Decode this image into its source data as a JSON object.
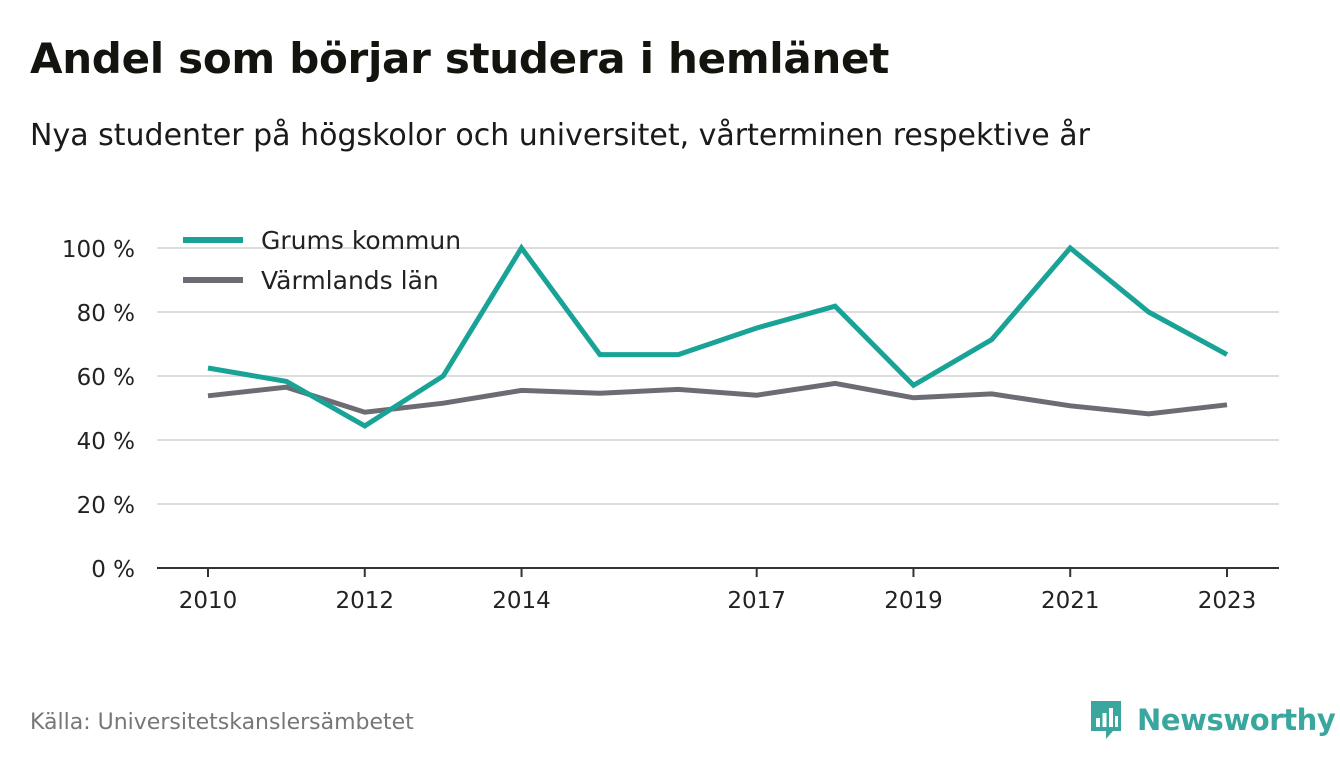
{
  "title": "Andel som börjar studera i hemlänet",
  "subtitle": "Nya studenter på högskolor och universitet, vårterminen respektive år",
  "source": "Källa: Universitetskanslersämbetet",
  "brand": "Newsworthy",
  "colors": {
    "grums": "#19a397",
    "varmland": "#6d6c74",
    "brand": "#3aa79f",
    "grid": "#dddddd",
    "axis": "#333333"
  },
  "chart_data": {
    "type": "line",
    "x": [
      2010,
      2011,
      2012,
      2013,
      2014,
      2015,
      2016,
      2017,
      2018,
      2019,
      2020,
      2021,
      2022,
      2023
    ],
    "x_tick_labels": [
      "2010",
      "2012",
      "2014",
      "2017",
      "2019",
      "2021",
      "2023"
    ],
    "x_tick_values": [
      2010,
      2012,
      2014,
      2017,
      2019,
      2021,
      2023
    ],
    "y_tick_values": [
      0,
      20,
      40,
      60,
      80,
      100
    ],
    "y_tick_labels": [
      "0 %",
      "20 %",
      "40 %",
      "60 %",
      "80 %",
      "100 %"
    ],
    "ylim": [
      0,
      100
    ],
    "xlim": [
      2010,
      2023
    ],
    "grid": true,
    "legend_position": "top-left",
    "series": [
      {
        "name": "Grums kommun",
        "color": "#19a397",
        "values": [
          62.5,
          58.3,
          44.4,
          60.0,
          100,
          66.7,
          66.7,
          75.0,
          81.8,
          57.1,
          71.4,
          100,
          80.0,
          66.7
        ]
      },
      {
        "name": "Värmlands län",
        "color": "#6d6c74",
        "values": [
          53.8,
          56.5,
          48.7,
          51.5,
          55.5,
          54.6,
          55.8,
          54.0,
          57.7,
          53.2,
          54.4,
          50.7,
          48.2,
          51.0
        ]
      }
    ]
  }
}
